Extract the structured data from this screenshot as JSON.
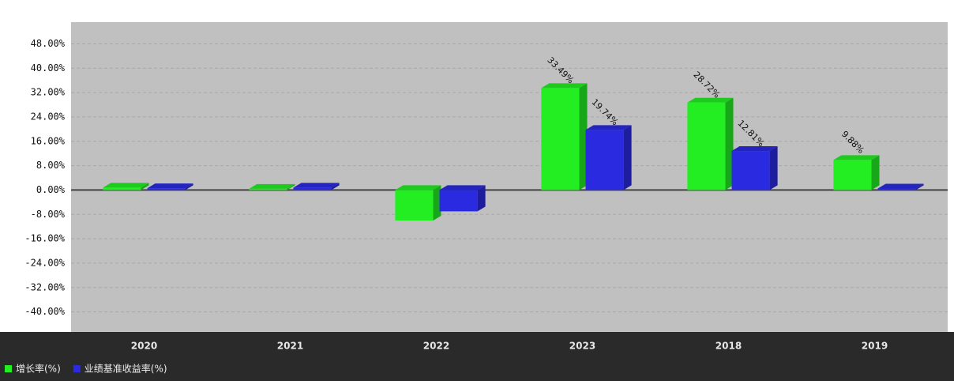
{
  "chart_data": {
    "type": "bar3d",
    "categories": [
      "2020",
      "2021",
      "2022",
      "2023",
      "2018",
      "2019"
    ],
    "series": [
      {
        "name": "增长率(%)",
        "color": "#22ee22",
        "values": [
          0.8,
          0.4,
          -10,
          33.49,
          28.72,
          9.88
        ],
        "value_labels": [
          null,
          null,
          null,
          "33.49%",
          "28.72%",
          "9.88%"
        ]
      },
      {
        "name": "业绩基准收益率(%)",
        "color": "#2a2ae0",
        "values": [
          0.6,
          0.8,
          -7,
          19.74,
          12.81,
          0.5
        ],
        "value_labels": [
          null,
          null,
          null,
          "19.74%",
          "12.81%",
          null
        ]
      }
    ],
    "ylim": [
      -44,
      52
    ],
    "yticks": [
      {
        "value": -40,
        "label": "-40.00%"
      },
      {
        "value": -32,
        "label": "-32.00%"
      },
      {
        "value": -24,
        "label": "-24.00%"
      },
      {
        "value": -16,
        "label": "-16.00%"
      },
      {
        "value": -8,
        "label": "-8.00%"
      },
      {
        "value": 0,
        "label": "0.00%"
      },
      {
        "value": 8,
        "label": "8.00%"
      },
      {
        "value": 16,
        "label": "16.00%"
      },
      {
        "value": 24,
        "label": "24.00%"
      },
      {
        "value": 32,
        "label": "32.00%"
      },
      {
        "value": 40,
        "label": "40.00%"
      },
      {
        "value": 48,
        "label": "48.00%"
      }
    ],
    "grid": true
  }
}
